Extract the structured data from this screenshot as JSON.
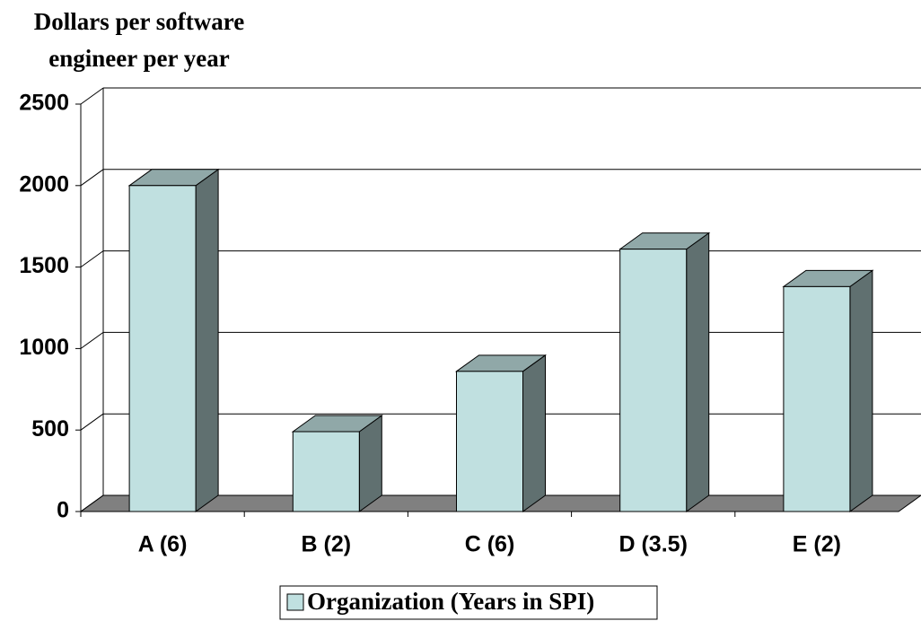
{
  "chart_data": {
    "type": "bar3d",
    "title": [
      "Dollars per software",
      "engineer per year"
    ],
    "categories": [
      "A (6)",
      "B (2)",
      "C (6)",
      "D (3.5)",
      "E (2)"
    ],
    "series": [
      {
        "name": "Organization (Years in SPI)",
        "color": "#c0e0e0",
        "values": [
          2000,
          490,
          860,
          1610,
          1380
        ]
      }
    ],
    "ylim": [
      0,
      2500
    ],
    "yticks": [
      0,
      500,
      1000,
      1500,
      2000,
      2500
    ],
    "grid": true,
    "legend": "bottom"
  }
}
